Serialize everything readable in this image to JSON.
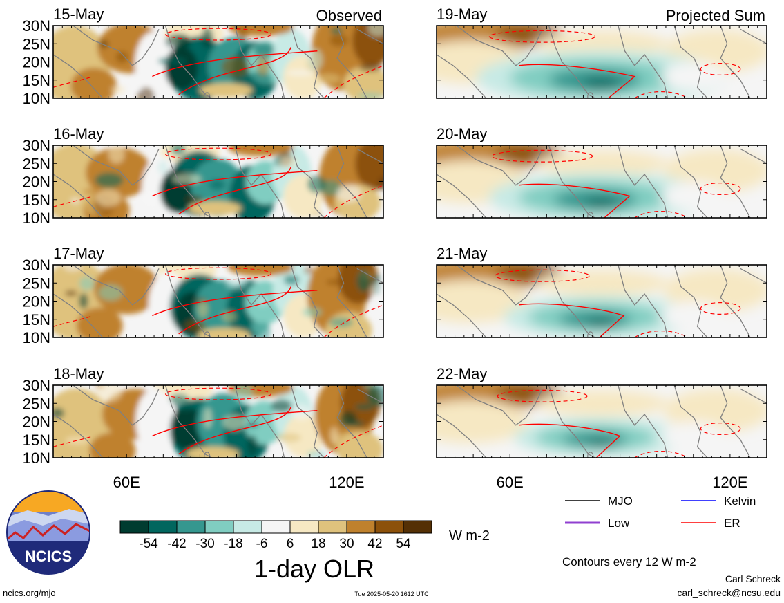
{
  "chart_data": {
    "type": "heatmap",
    "title": "1-day OLR",
    "units": "W m-2",
    "contour_note": "Contours every 12 W m-2",
    "y_ticks": [
      "30N",
      "25N",
      "20N",
      "15N",
      "10N"
    ],
    "x_ticks": [
      "60E",
      "120E"
    ],
    "lat_range": [
      10,
      30
    ],
    "lon_range": [
      40,
      130
    ],
    "colorbar": {
      "ticks": [
        "-54",
        "-42",
        "-30",
        "-18",
        "-6",
        "6",
        "18",
        "30",
        "42",
        "54"
      ],
      "colors": [
        "#003c30",
        "#01665e",
        "#35978f",
        "#80cdc1",
        "#c7eae5",
        "#f5f5f5",
        "#f6e8c3",
        "#dfc27d",
        "#bf812d",
        "#8c510a",
        "#543005"
      ]
    },
    "panels": [
      {
        "date": "15-May",
        "label": "Observed",
        "kind": "observed"
      },
      {
        "date": "16-May",
        "label": "",
        "kind": "observed"
      },
      {
        "date": "17-May",
        "label": "",
        "kind": "observed"
      },
      {
        "date": "18-May",
        "label": "",
        "kind": "observed"
      },
      {
        "date": "19-May",
        "label": "Projected Sum",
        "kind": "projected"
      },
      {
        "date": "20-May",
        "label": "",
        "kind": "projected"
      },
      {
        "date": "21-May",
        "label": "",
        "kind": "projected"
      },
      {
        "date": "22-May",
        "label": "",
        "kind": "projected"
      }
    ],
    "legend": [
      {
        "name": "MJO",
        "color": "#000000"
      },
      {
        "name": "Kelvin",
        "color": "#0000ff"
      },
      {
        "name": "Low",
        "color": "#9040d0"
      },
      {
        "name": "ER",
        "color": "#ff0000"
      }
    ]
  },
  "footer": {
    "logo_text": "NCICS",
    "site": "ncics.org/mjo",
    "timestamp": "Tue 2025-05-20 1612 UTC",
    "author": "Carl Schreck",
    "email": "carl_schreck@ncsu.edu"
  }
}
